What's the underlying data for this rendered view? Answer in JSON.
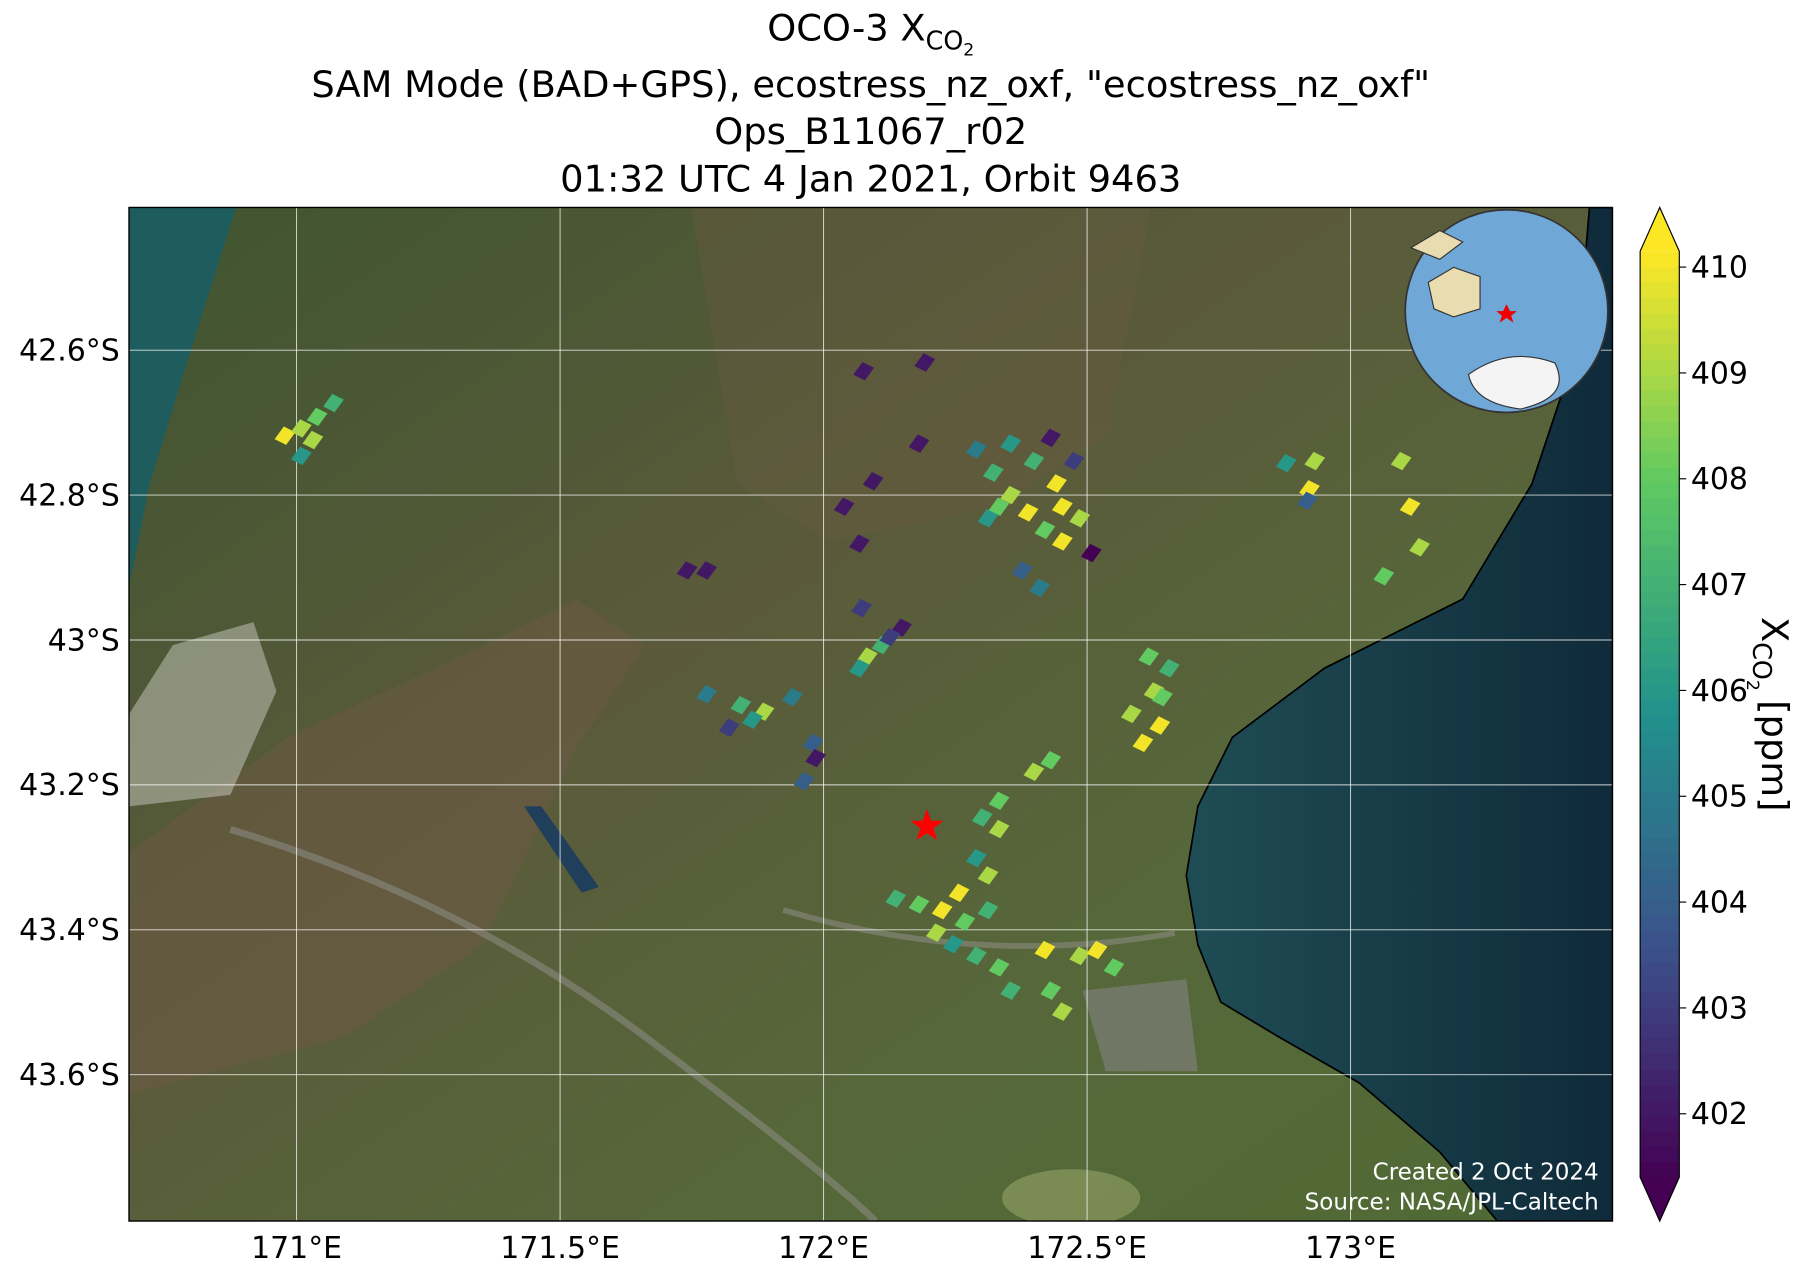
{
  "chart_data": {
    "type": "scatter",
    "title": {
      "text": "OCO-3 X",
      "sub": "CO",
      "subsub": "2"
    },
    "subtitles": [
      "SAM Mode (BAD+GPS), ecostress_nz_oxf, \"ecostress_nz_oxf\"",
      "Ops_B11067_r02",
      "01:32 UTC 4 Jan 2021, Orbit 9463"
    ],
    "xlim": [
      170.682,
      173.497
    ],
    "ylim": [
      -43.802,
      -42.403
    ],
    "xticks": [
      {
        "value": 171,
        "label": "171°E"
      },
      {
        "value": 171.5,
        "label": "171.5°E"
      },
      {
        "value": 172,
        "label": "172°E"
      },
      {
        "value": 172.5,
        "label": "172.5°E"
      },
      {
        "value": 173,
        "label": "173°E"
      }
    ],
    "yticks": [
      {
        "value": -42.6,
        "label": "42.6°S"
      },
      {
        "value": -42.8,
        "label": "42.8°S"
      },
      {
        "value": -43,
        "label": "43°S"
      },
      {
        "value": -43.2,
        "label": "43.2°S"
      },
      {
        "value": -43.4,
        "label": "43.4°S"
      },
      {
        "value": -43.6,
        "label": "43.6°S"
      }
    ],
    "grid": true,
    "x": [
      170.978,
      171.009,
      171.039,
      171.07,
      171.009,
      171.031,
      172.076,
      172.192,
      172.181,
      172.094,
      172.039,
      172.068,
      171.741,
      171.778,
      172.072,
      172.29,
      172.322,
      172.355,
      172.388,
      172.42,
      172.453,
      172.486,
      172.442,
      172.399,
      172.355,
      172.475,
      172.431,
      172.312,
      172.377,
      172.41,
      172.508,
      172.333,
      172.453,
      171.778,
      171.843,
      171.887,
      171.821,
      171.865,
      171.941,
      171.98,
      171.985,
      171.963,
      172.083,
      172.111,
      172.148,
      172.126,
      172.068,
      172.617,
      172.627,
      172.638,
      172.606,
      172.656,
      172.584,
      172.643,
      172.932,
      172.922,
      172.918,
      172.878,
      173.096,
      173.113,
      173.131,
      173.063,
      172.399,
      172.431,
      172.333,
      172.301,
      172.333,
      172.29,
      172.312,
      172.257,
      172.225,
      172.181,
      172.137,
      172.214,
      172.268,
      172.312,
      172.246,
      172.29,
      172.333,
      172.42,
      172.486,
      172.519,
      172.551,
      172.355,
      172.431,
      172.453
    ],
    "y": [
      -42.718,
      -42.708,
      -42.692,
      -42.673,
      -42.746,
      -42.724,
      -42.629,
      -42.617,
      -42.729,
      -42.781,
      -42.816,
      -42.867,
      -42.904,
      -42.904,
      -42.956,
      -42.737,
      -42.769,
      -42.8,
      -42.824,
      -42.848,
      -42.864,
      -42.832,
      -42.784,
      -42.753,
      -42.729,
      -42.753,
      -42.721,
      -42.832,
      -42.904,
      -42.928,
      -42.88,
      -42.816,
      -42.816,
      -43.075,
      -43.09,
      -43.099,
      -43.121,
      -43.11,
      -43.079,
      -43.142,
      -43.163,
      -43.195,
      -43.023,
      -43.007,
      -42.983,
      -42.996,
      -43.039,
      -43.023,
      -43.071,
      -43.118,
      -43.142,
      -43.039,
      -43.102,
      -43.079,
      -42.753,
      -42.792,
      -42.808,
      -42.756,
      -42.753,
      -42.816,
      -42.872,
      -42.912,
      -43.182,
      -43.166,
      -43.222,
      -43.245,
      -43.261,
      -43.301,
      -43.325,
      -43.349,
      -43.373,
      -43.365,
      -43.357,
      -43.404,
      -43.389,
      -43.373,
      -43.42,
      -43.436,
      -43.452,
      -43.428,
      -43.436,
      -43.428,
      -43.452,
      -43.484,
      -43.484,
      -43.513
    ],
    "values": [
      410,
      409,
      408,
      407,
      406,
      409,
      402,
      402,
      402,
      402,
      402,
      402,
      402,
      402,
      403,
      405,
      407,
      409,
      410,
      408,
      410,
      409,
      410,
      407,
      406,
      403,
      402,
      406,
      404,
      405,
      401,
      408,
      410,
      405,
      407,
      409,
      403,
      406,
      405,
      404,
      402,
      404,
      409,
      407,
      402,
      403,
      406,
      408,
      409,
      410,
      410,
      407,
      409,
      408,
      409,
      410,
      404,
      406,
      409,
      410,
      409,
      408,
      409,
      408,
      408,
      407,
      409,
      406,
      409,
      410,
      410,
      408,
      407,
      409,
      408,
      407,
      406,
      407,
      408,
      410,
      409,
      410,
      408,
      407,
      408,
      409
    ],
    "target": {
      "lon": 172.196,
      "lat": -43.257
    },
    "clim": [
      401.4,
      410.15
    ],
    "cticks": [
      402,
      403,
      404,
      405,
      406,
      407,
      408,
      409,
      410
    ],
    "colorbar_label": {
      "text": "X",
      "sub": "CO",
      "subsub": "2",
      "unit": "[ppm]"
    },
    "notes": [
      "Created 2 Oct 2024",
      "Source: NASA/JPL-Caltech"
    ]
  }
}
